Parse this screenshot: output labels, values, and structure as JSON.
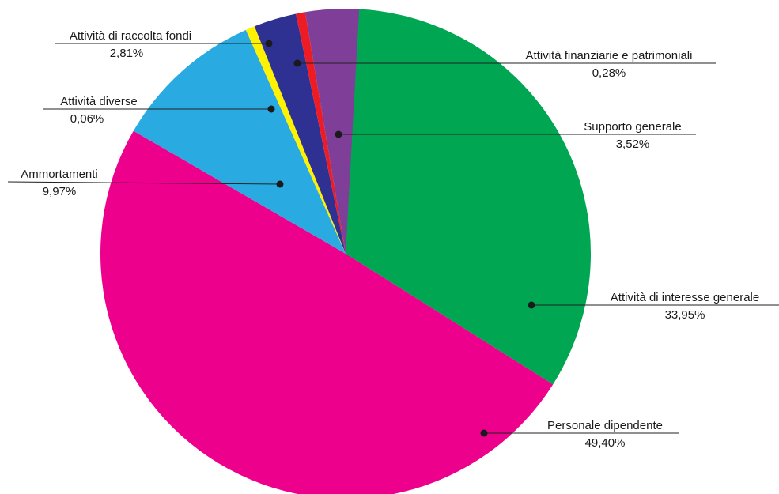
{
  "chart_data": {
    "type": "pie",
    "title": "",
    "slices": [
      {
        "label": "Attività di interesse generale",
        "value": 33.95,
        "value_label": "33,95%",
        "color": "#00a651"
      },
      {
        "label": "Personale dipendente",
        "value": 49.4,
        "value_label": "49,40%",
        "color": "#ec008c"
      },
      {
        "label": "Ammortamenti",
        "value": 9.97,
        "value_label": "9,97%",
        "color": "#29abe2"
      },
      {
        "label": "Attività diverse",
        "value": 0.06,
        "value_label": "0,06%",
        "color": "#fff200"
      },
      {
        "label": "Attività di raccolta fondi",
        "value": 2.81,
        "value_label": "2,81%",
        "color": "#2e3192"
      },
      {
        "label": "Attività finanziarie e patrimoniali",
        "value": 0.28,
        "value_label": "0,28%",
        "color": "#ed1c24"
      },
      {
        "label": "Supporto generale",
        "value": 3.52,
        "value_label": "3,52%",
        "color": "#7f3f98"
      }
    ],
    "start_angle": "12 o'clock",
    "direction": "clockwise",
    "legend": "none"
  }
}
